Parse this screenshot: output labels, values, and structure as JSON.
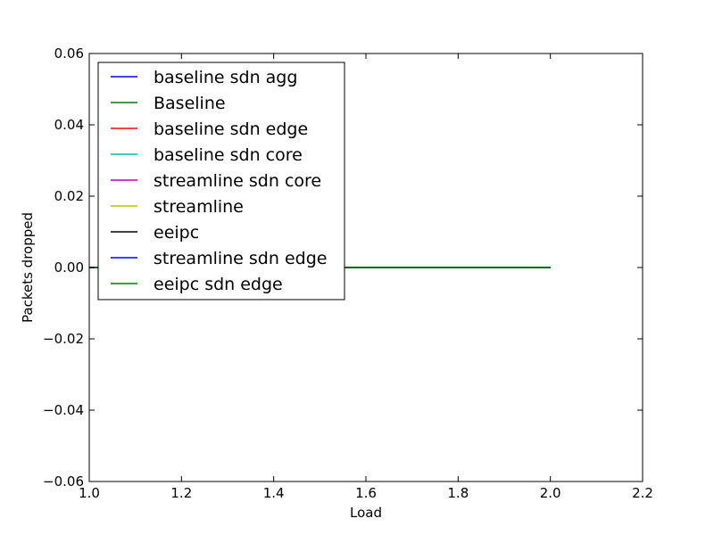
{
  "chart_data": {
    "type": "line",
    "title": "",
    "xlabel": "Load",
    "ylabel": "Packets dropped",
    "xlim": [
      1.0,
      2.2
    ],
    "ylim": [
      -0.06,
      0.06
    ],
    "xticks": [
      1.0,
      1.2,
      1.4,
      1.6,
      1.8,
      2.0,
      2.2
    ],
    "yticks": [
      -0.06,
      -0.04,
      -0.02,
      0.0,
      0.02,
      0.04,
      0.06
    ],
    "xtick_labels": [
      "1.0",
      "1.2",
      "1.4",
      "1.6",
      "1.8",
      "2.0",
      "2.2"
    ],
    "ytick_labels": [
      "−0.06",
      "−0.04",
      "−0.02",
      "0.00",
      "0.02",
      "0.04",
      "0.06"
    ],
    "grid": false,
    "legend_position": "top-left",
    "x": [
      1.0,
      1.2,
      1.4,
      1.6,
      1.8,
      2.0
    ],
    "series": [
      {
        "name": "baseline sdn agg",
        "color": "#0000ff",
        "values": [
          0,
          0,
          0,
          0,
          0,
          0
        ]
      },
      {
        "name": "Baseline",
        "color": "#008000",
        "values": [
          0,
          0,
          0,
          0,
          0,
          0
        ]
      },
      {
        "name": "baseline sdn edge",
        "color": "#ff0000",
        "values": [
          0,
          0,
          0,
          0,
          0,
          0
        ]
      },
      {
        "name": "baseline sdn core",
        "color": "#00bfbf",
        "values": [
          0,
          0,
          0,
          0,
          0,
          0
        ]
      },
      {
        "name": "streamline sdn core",
        "color": "#bf00bf",
        "values": [
          0,
          0,
          0,
          0,
          0,
          0
        ]
      },
      {
        "name": "streamline",
        "color": "#bfbf00",
        "values": [
          0,
          0,
          0,
          0,
          0,
          0
        ]
      },
      {
        "name": "eeipc",
        "color": "#000000",
        "values": [
          0,
          0,
          0,
          0,
          0,
          0
        ]
      },
      {
        "name": "streamline sdn edge",
        "color": "#0000ff",
        "values": [
          0,
          0,
          0,
          0,
          0,
          0
        ]
      },
      {
        "name": "eeipc sdn edge",
        "color": "#008000",
        "values": [
          0,
          0,
          0,
          0,
          0,
          0
        ]
      }
    ]
  }
}
